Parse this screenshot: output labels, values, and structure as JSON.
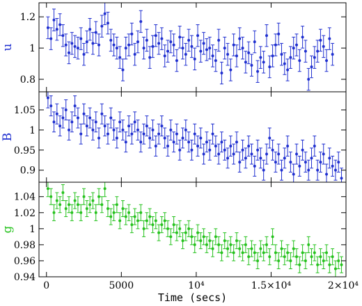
{
  "chart_data": {
    "type": "scatter",
    "xlabel": "Time (secs)",
    "xlim": [
      -500,
      20000
    ],
    "x_ticks": [
      {
        "value": 0,
        "label": "0"
      },
      {
        "value": 5000,
        "label": "5000"
      },
      {
        "value": 10000,
        "label": "10⁴"
      },
      {
        "value": 15000,
        "label": "1.5×10⁴"
      },
      {
        "value": 20000,
        "label": "2×10⁴"
      }
    ],
    "grid": false,
    "error_bars": true,
    "panels": [
      {
        "ylabel": "u",
        "color": "#1f2fd0",
        "ylim": [
          0.72,
          1.29
        ],
        "y_ticks": [
          {
            "value": 0.8,
            "label": "0.8"
          },
          {
            "value": 1,
            "label": "1"
          },
          {
            "value": 1.2,
            "label": "1.2"
          }
        ],
        "error": 0.07,
        "x": [
          100,
          300,
          500,
          700,
          900,
          1100,
          1300,
          1500,
          1700,
          1900,
          2100,
          2300,
          2500,
          2700,
          2900,
          3100,
          3300,
          3500,
          3700,
          3900,
          4100,
          4300,
          4500,
          4700,
          4900,
          5100,
          5300,
          5500,
          5700,
          5900,
          6100,
          6300,
          6500,
          6700,
          6900,
          7100,
          7300,
          7500,
          7700,
          7900,
          8100,
          8300,
          8500,
          8700,
          8900,
          9100,
          9300,
          9500,
          9700,
          9900,
          10100,
          10300,
          10500,
          10700,
          10900,
          11100,
          11300,
          11500,
          11700,
          11900,
          12100,
          12300,
          12500,
          12700,
          12900,
          13100,
          13300,
          13500,
          13700,
          13900,
          14100,
          14300,
          14500,
          14700,
          14900,
          15100,
          15300,
          15500,
          15700,
          15900,
          16100,
          16300,
          16500,
          16700,
          16900,
          17100,
          17300,
          17500,
          17700,
          17900,
          18100,
          18300,
          18500,
          18700,
          18900,
          19100
        ],
        "y": [
          1.13,
          1.06,
          1.18,
          1.12,
          1.15,
          1.08,
          1.02,
          0.97,
          1.03,
          1.01,
          1.0,
          1.06,
          0.96,
          1.04,
          1.12,
          1.03,
          1.1,
          1.02,
          1.14,
          1.22,
          1.16,
          1.05,
          1.02,
          1.0,
          0.94,
          0.86,
          1.0,
          1.02,
          1.09,
          0.96,
          1.04,
          1.17,
          1.0,
          1.05,
          0.94,
          1.01,
          1.08,
          1.03,
          1.06,
          0.95,
          0.98,
          1.04,
          1.02,
          0.92,
          1.07,
          1.0,
          0.96,
          1.05,
          1.01,
          0.93,
          1.08,
          0.98,
          1.03,
          0.99,
          1.0,
          0.95,
          0.92,
          1.05,
          0.84,
          1.0,
          0.96,
          0.86,
          1.02,
          0.95,
          1.06,
          1.0,
          0.91,
          0.97,
          0.89,
          1.04,
          0.85,
          0.94,
          0.91,
          1.08,
          0.88,
          0.95,
          1.02,
          1.09,
          0.96,
          0.9,
          0.86,
          0.94,
          1.0,
          1.02,
          0.92,
          1.07,
          0.98,
          0.8,
          0.88,
          0.94,
          0.98,
          1.05,
          1.01,
          0.92,
          1.06,
          0.96
        ]
      },
      {
        "ylabel": "B",
        "color": "#1f2fd0",
        "ylim": [
          0.87,
          1.095
        ],
        "y_ticks": [
          {
            "value": 0.9,
            "label": "0.9"
          },
          {
            "value": 0.95,
            "label": "0.95"
          },
          {
            "value": 1,
            "label": "1"
          },
          {
            "value": 1.05,
            "label": "1.05"
          }
        ],
        "error": 0.025,
        "x": [
          100,
          300,
          500,
          700,
          900,
          1100,
          1300,
          1500,
          1700,
          1900,
          2100,
          2300,
          2500,
          2700,
          2900,
          3100,
          3300,
          3500,
          3700,
          3900,
          4100,
          4300,
          4500,
          4700,
          4900,
          5100,
          5300,
          5500,
          5700,
          5900,
          6100,
          6300,
          6500,
          6700,
          6900,
          7100,
          7300,
          7500,
          7700,
          7900,
          8100,
          8300,
          8500,
          8700,
          8900,
          9100,
          9300,
          9500,
          9700,
          9900,
          10100,
          10300,
          10500,
          10700,
          10900,
          11100,
          11300,
          11500,
          11700,
          11900,
          12100,
          12300,
          12500,
          12700,
          12900,
          13100,
          13300,
          13500,
          13700,
          13900,
          14100,
          14300,
          14500,
          14700,
          14900,
          15100,
          15300,
          15500,
          15700,
          15900,
          16100,
          16300,
          16500,
          16700,
          16900,
          17100,
          17300,
          17500,
          17700,
          17900,
          18100,
          18300,
          18500,
          18700,
          18900,
          19100,
          19300,
          19500,
          19700
        ],
        "y": [
          1.08,
          1.06,
          1.02,
          1.04,
          1.01,
          1.03,
          1.05,
          1.0,
          1.02,
          1.06,
          1.03,
          0.99,
          1.04,
          1.01,
          1.03,
          1.0,
          1.02,
          0.98,
          1.04,
          1.01,
          0.99,
          1.03,
          1.0,
          0.98,
          1.02,
          1.0,
          0.97,
          1.01,
          0.99,
          1.02,
          1.0,
          0.97,
          0.99,
          1.01,
          0.98,
          1.0,
          0.96,
          0.99,
          1.01,
          0.98,
          0.96,
          1.0,
          0.97,
          0.99,
          0.95,
          0.98,
          1.0,
          0.97,
          0.95,
          0.99,
          0.96,
          0.98,
          0.94,
          0.97,
          0.95,
          0.99,
          0.96,
          0.94,
          0.97,
          0.95,
          0.93,
          0.96,
          0.94,
          0.97,
          0.92,
          0.95,
          0.93,
          0.96,
          0.94,
          0.91,
          0.95,
          0.93,
          0.9,
          0.94,
          0.98,
          0.95,
          0.92,
          0.94,
          0.9,
          0.93,
          0.96,
          0.92,
          0.89,
          0.94,
          0.91,
          0.95,
          0.92,
          0.9,
          0.93,
          0.96,
          0.9,
          0.92,
          0.94,
          0.89,
          0.93,
          0.91,
          0.9,
          0.92,
          0.88
        ]
      },
      {
        "ylabel": "g",
        "color": "#26c21e",
        "ylim": [
          0.94,
          1.058
        ],
        "y_ticks": [
          {
            "value": 0.94,
            "label": "0.94"
          },
          {
            "value": 0.96,
            "label": "0.96"
          },
          {
            "value": 0.98,
            "label": "0.98"
          },
          {
            "value": 1,
            "label": "1"
          },
          {
            "value": 1.02,
            "label": "1.02"
          },
          {
            "value": 1.04,
            "label": "1.04"
          }
        ],
        "error": 0.01,
        "x": [
          100,
          300,
          500,
          700,
          900,
          1100,
          1300,
          1500,
          1700,
          1900,
          2100,
          2300,
          2500,
          2700,
          2900,
          3100,
          3300,
          3500,
          3700,
          3900,
          4100,
          4300,
          4500,
          4700,
          4900,
          5100,
          5300,
          5500,
          5700,
          5900,
          6100,
          6300,
          6500,
          6700,
          6900,
          7100,
          7300,
          7500,
          7700,
          7900,
          8100,
          8300,
          8500,
          8700,
          8900,
          9100,
          9300,
          9500,
          9700,
          9900,
          10100,
          10300,
          10500,
          10700,
          10900,
          11100,
          11300,
          11500,
          11700,
          11900,
          12100,
          12300,
          12500,
          12700,
          12900,
          13100,
          13300,
          13500,
          13700,
          13900,
          14100,
          14300,
          14500,
          14700,
          14900,
          15100,
          15300,
          15500,
          15700,
          15900,
          16100,
          16300,
          16500,
          16700,
          16900,
          17100,
          17300,
          17500,
          17700,
          17900,
          18100,
          18300,
          18500,
          18700,
          18900,
          19100,
          19300,
          19500,
          19700
        ],
        "y": [
          1.05,
          1.04,
          1.02,
          1.035,
          1.03,
          1.045,
          1.025,
          1.03,
          1.02,
          1.035,
          1.03,
          1.02,
          1.04,
          1.025,
          1.03,
          1.035,
          1.02,
          1.04,
          1.03,
          1.05,
          1.025,
          1.015,
          1.02,
          1.03,
          1.01,
          1.025,
          1.015,
          1.02,
          1.005,
          1.015,
          1.01,
          1.02,
          1.0,
          1.01,
          1.015,
          1.005,
          1.01,
          0.995,
          1.005,
          1.01,
          1.0,
          0.99,
          1.005,
          0.995,
          1.0,
          0.985,
          0.995,
          1.0,
          0.99,
          0.98,
          0.995,
          0.985,
          0.99,
          0.98,
          0.985,
          0.975,
          0.99,
          0.98,
          0.97,
          0.985,
          0.975,
          0.98,
          0.97,
          0.985,
          0.975,
          0.97,
          0.98,
          0.965,
          0.975,
          0.97,
          0.96,
          0.975,
          0.97,
          0.98,
          0.965,
          0.99,
          0.97,
          0.96,
          0.975,
          0.965,
          0.97,
          0.96,
          0.975,
          0.965,
          0.955,
          0.97,
          0.96,
          0.98,
          0.965,
          0.97,
          0.955,
          0.965,
          0.96,
          0.97,
          0.955,
          0.965,
          0.95,
          0.96,
          0.955
        ]
      }
    ]
  }
}
